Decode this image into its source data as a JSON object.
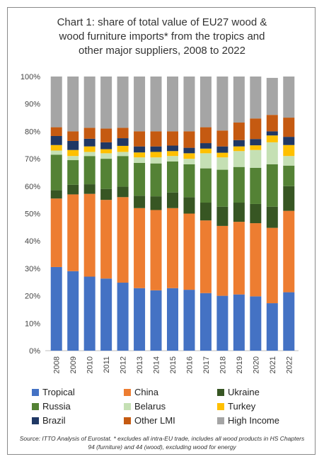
{
  "chart_data": {
    "type": "bar",
    "stacked": true,
    "title_lines": [
      "Chart 1: share of total value of EU27 wood &",
      "wood furniture imports* from the tropics and",
      "other major suppliers, 2008 to 2022"
    ],
    "categories": [
      "2008",
      "2009",
      "2010",
      "2011",
      "2012",
      "2013",
      "2014",
      "2015",
      "2016",
      "2017",
      "2018",
      "2019",
      "2020",
      "2021",
      "2022"
    ],
    "ylim": [
      0,
      100
    ],
    "yticks": [
      "0%",
      "10%",
      "20%",
      "30%",
      "40%",
      "50%",
      "60%",
      "70%",
      "80%",
      "90%",
      "100%"
    ],
    "grid": false,
    "legend_position": "bottom",
    "series": [
      {
        "name": "Tropical",
        "color": "#4472C4",
        "values": [
          30.5,
          29,
          27,
          26.3,
          24.8,
          22.8,
          22,
          22.8,
          22.2,
          21,
          20,
          20.5,
          19.8,
          17.3,
          21.3
        ]
      },
      {
        "name": "China",
        "color": "#ED7D31",
        "values": [
          25,
          28,
          30.2,
          28.7,
          31.2,
          29.2,
          29.3,
          29.2,
          27.8,
          26.5,
          25.5,
          26.5,
          26.7,
          27.5,
          29.7
        ]
      },
      {
        "name": "Ukraine",
        "color": "#375623",
        "values": [
          3,
          3.5,
          3.5,
          4,
          3.8,
          4.5,
          5,
          5.7,
          6,
          6.5,
          7,
          7,
          7,
          7.7,
          9
        ]
      },
      {
        "name": "Russia",
        "color": "#548235",
        "values": [
          13,
          9,
          10.3,
          11,
          11.2,
          12,
          12,
          11.3,
          12,
          12.5,
          13.5,
          13,
          13.2,
          15.5,
          7.5
        ]
      },
      {
        "name": "Belarus",
        "color": "#C5E0B4",
        "values": [
          1.5,
          1.5,
          1.5,
          2,
          1.5,
          2,
          2.2,
          2,
          2,
          5.5,
          4.5,
          5.8,
          6.5,
          8,
          3.5
        ]
      },
      {
        "name": "Turkey",
        "color": "#FFC000",
        "values": [
          2,
          2.2,
          2,
          1.5,
          2.2,
          1.8,
          2,
          1.8,
          2,
          1.7,
          1.7,
          1.7,
          1.7,
          2.5,
          4
        ]
      },
      {
        "name": "Brazil",
        "color": "#203864",
        "values": [
          3.3,
          3.3,
          2.8,
          2.5,
          2.8,
          2.2,
          2,
          2,
          2,
          2,
          2.3,
          2.3,
          2.3,
          1.5,
          3
        ]
      },
      {
        "name": "Other LMI",
        "color": "#C55A11",
        "values": [
          3.2,
          3.5,
          4,
          5,
          3.8,
          5.5,
          5.5,
          5.2,
          6,
          5.8,
          5.8,
          6.4,
          7.5,
          6,
          7
        ]
      },
      {
        "name": "High Income",
        "color": "#A5A5A5",
        "values": [
          18.5,
          20,
          18.7,
          19,
          18.7,
          20,
          20,
          20,
          20,
          18.5,
          19.7,
          16.8,
          15.3,
          13.5,
          15
        ]
      }
    ],
    "footnote": "Source: ITTO Analysis of Eurostat. * excludes all intra-EU trade, includes all wood products in HS Chapters 94 (furniture) and 44 (wood), excluding wood for energy"
  }
}
